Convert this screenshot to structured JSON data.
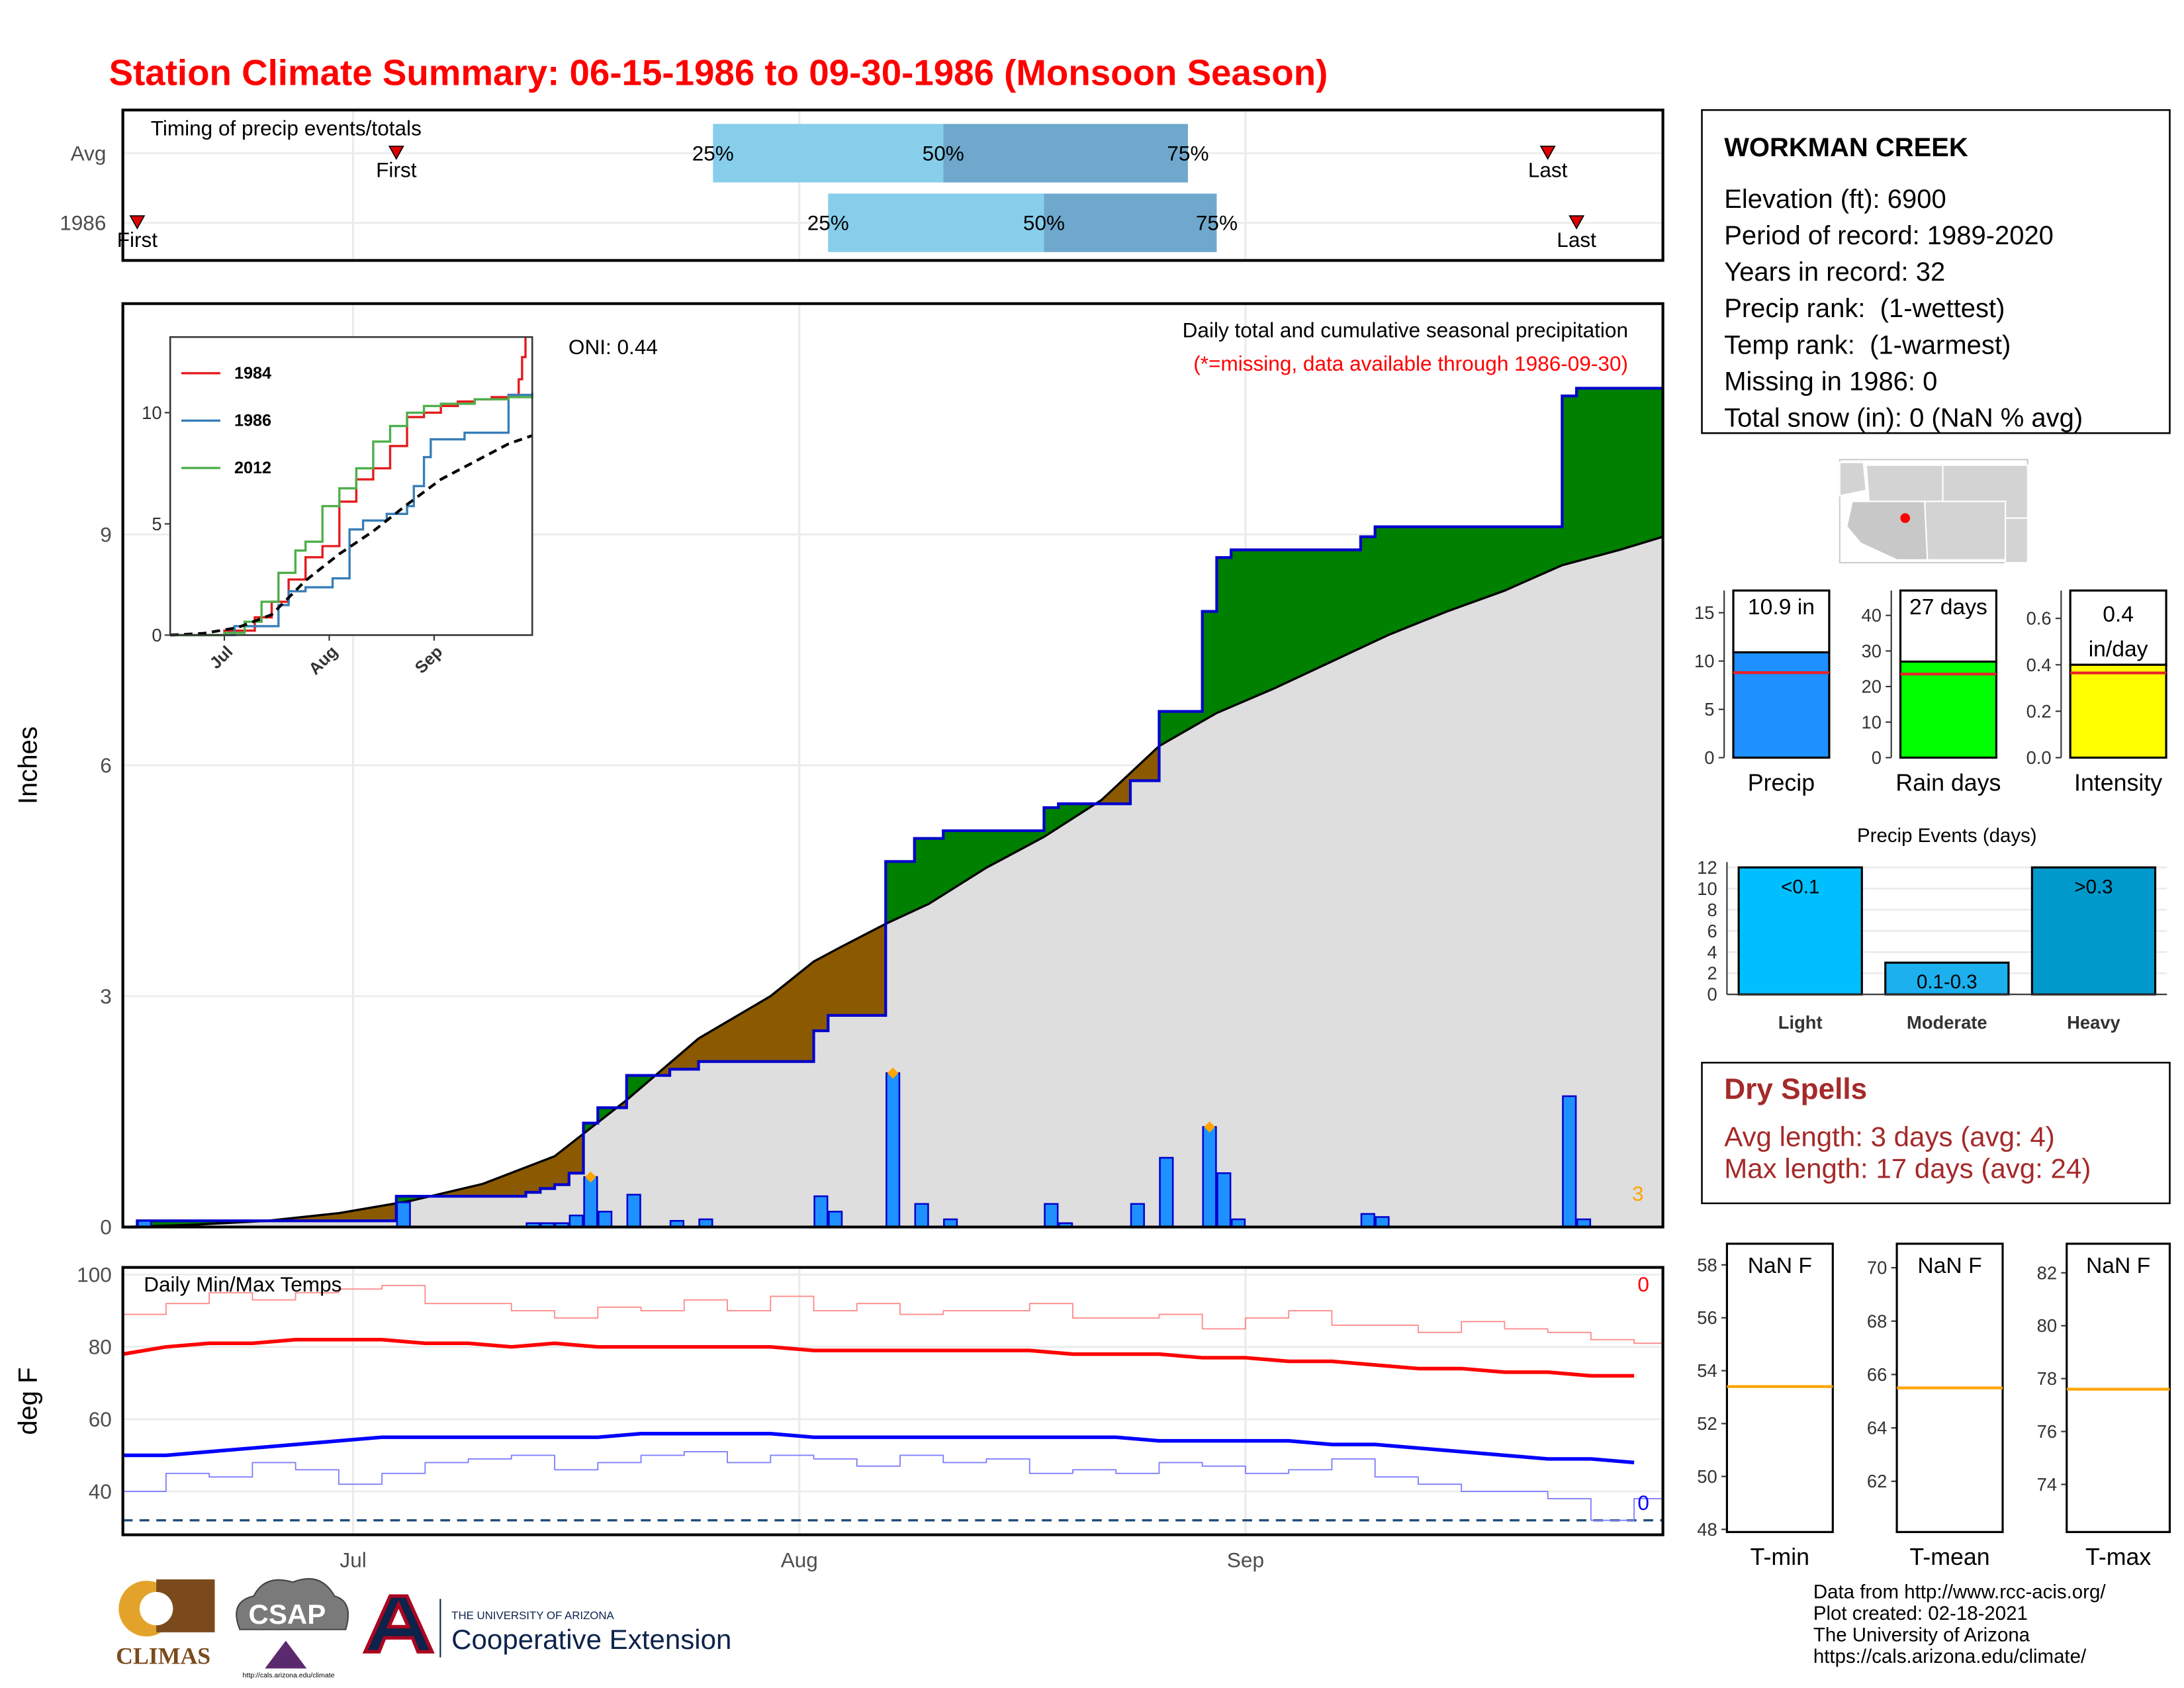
{
  "title": "Station Climate Summary: 06-15-1986 to 09-30-1986 (Monsoon Season)",
  "station": {
    "name": "WORKMAN CREEK",
    "lines": [
      "Elevation (ft): 6900",
      "Period of record: 1989-2020",
      "Years in record: 32",
      "Precip rank:  (1-wettest)",
      "Temp rank:  (1-warmest)",
      "Missing in 1986: 0",
      "Total snow (in): 0 (NaN % avg)"
    ]
  },
  "dry_spells": {
    "title": "Dry Spells",
    "lines": [
      "Avg length: 3 days (avg: 4)",
      "Max length: 17 days (avg: 24)"
    ]
  },
  "footer": [
    "Data from http://www.rcc-acis.org/",
    "Plot created: 02-18-2021",
    "The University of Arizona",
    "https://cals.arizona.edu/climate/"
  ],
  "logos": {
    "climas": "CLIMAS",
    "csap": "CSAP",
    "csap_url": "http://cals.arizona.edu/climate",
    "ua": "THE UNIVERSITY OF ARIZONA",
    "extension": "Cooperative Extension"
  },
  "chart_data": [
    {
      "type": "timing",
      "title": "Timing of precip events/totals",
      "categories": [
        "Avg",
        "1986"
      ],
      "first": [
        19,
        1
      ],
      "q25": [
        41,
        49
      ],
      "q50": [
        57,
        64
      ],
      "q75": [
        74,
        76
      ],
      "last": [
        99,
        101
      ],
      "labels": {
        "first": "First",
        "last": "Last",
        "q25": "25%",
        "q50": "50%",
        "q75": "75%"
      },
      "colors": [
        "#87ceeb",
        "#6fa8cc"
      ],
      "xlim": [
        0,
        107
      ],
      "xticks": [
        {
          "value": 16,
          "label": "Jul"
        },
        {
          "value": 47,
          "label": "Aug"
        },
        {
          "value": 78,
          "label": "Sep"
        }
      ],
      "grid": true
    },
    {
      "type": "precip",
      "title": "Daily total and cumulative seasonal precipitation",
      "subtitle": "(*=missing, data available through 1986-09-30)",
      "annotation": "ONI: 0.44",
      "count_label": "3",
      "ylabel": "Inches",
      "xlim": [
        0,
        107
      ],
      "xticks": [
        {
          "value": 16,
          "label": "Jul"
        },
        {
          "value": 47,
          "label": "Aug"
        },
        {
          "value": 78,
          "label": "Sep"
        }
      ],
      "ylim": [
        0,
        12
      ],
      "yticks": [
        0,
        3,
        6,
        9
      ],
      "grid": true,
      "bars": {
        "color": "#1e90ff",
        "stroke": "#0000cd",
        "x": [
          1,
          19,
          28,
          29,
          30,
          31,
          32,
          33,
          35,
          38,
          40,
          48,
          49,
          53,
          55,
          57,
          64,
          65,
          70,
          72,
          75,
          76,
          77,
          86,
          87,
          100,
          101
        ],
        "values": [
          0.08,
          0.32,
          0.05,
          0.05,
          0.05,
          0.15,
          0.65,
          0.2,
          0.42,
          0.08,
          0.1,
          0.4,
          0.2,
          2.0,
          0.3,
          0.1,
          0.3,
          0.05,
          0.3,
          0.9,
          1.3,
          0.7,
          0.1,
          0.17,
          0.13,
          1.7,
          0.1
        ]
      },
      "highlight_days": [
        32,
        53,
        75
      ],
      "highlight_color": "#ffa500",
      "cumulative": {
        "color": "#0000cd",
        "x": [
          0,
          1,
          19,
          28,
          29,
          30,
          31,
          32,
          33,
          35,
          38,
          40,
          48,
          49,
          53,
          55,
          57,
          64,
          65,
          70,
          72,
          75,
          76,
          77,
          86,
          87,
          100,
          101
        ],
        "values": [
          0,
          0.08,
          0.4,
          0.45,
          0.5,
          0.55,
          0.7,
          1.35,
          1.55,
          1.97,
          2.05,
          2.15,
          2.55,
          2.75,
          4.75,
          5.05,
          5.15,
          5.45,
          5.5,
          5.8,
          6.7,
          8.0,
          8.7,
          8.8,
          8.97,
          9.1,
          10.8,
          10.9
        ]
      },
      "average": {
        "color": "#000000",
        "x": [
          0,
          5,
          10,
          15,
          20,
          25,
          30,
          35,
          40,
          45,
          48,
          50,
          53,
          56,
          60,
          64,
          68,
          72,
          76,
          80,
          84,
          88,
          92,
          96,
          100,
          104,
          107
        ],
        "values": [
          0,
          0.03,
          0.08,
          0.18,
          0.34,
          0.56,
          0.92,
          1.65,
          2.45,
          3.0,
          3.45,
          3.65,
          3.94,
          4.2,
          4.67,
          5.07,
          5.55,
          6.25,
          6.68,
          7.0,
          7.35,
          7.7,
          8.0,
          8.27,
          8.6,
          8.8,
          8.97
        ]
      },
      "above_color": "#008000",
      "below_color": "#8b5a00",
      "average_fill": "#dedede"
    },
    {
      "type": "line",
      "legend": "top-left",
      "xlim": [
        0,
        107
      ],
      "xticks": [
        {
          "value": 16,
          "label": "Jul"
        },
        {
          "value": 47,
          "label": "Aug"
        },
        {
          "value": 78,
          "label": "Sep"
        }
      ],
      "ylim": [
        0,
        13.4
      ],
      "yticks": [
        0,
        5,
        10
      ],
      "series": [
        {
          "name": "1984",
          "color": "#e41a1c",
          "style": "step",
          "x": [
            0,
            16,
            25,
            30,
            35,
            40,
            45,
            50,
            55,
            60,
            65,
            70,
            75,
            80,
            85,
            90,
            95,
            100,
            103,
            104,
            105
          ],
          "values": [
            0,
            0.2,
            0.8,
            1.5,
            2.5,
            3.5,
            4.0,
            6.0,
            7,
            7.5,
            8.5,
            9.8,
            10,
            10.3,
            10.5,
            10.6,
            10.7,
            10.8,
            11.5,
            12.5,
            13.4
          ]
        },
        {
          "name": "1986",
          "color": "#377eb8",
          "style": "step",
          "x": [
            0,
            19,
            32,
            35,
            40,
            48,
            53,
            57,
            64,
            70,
            72,
            75,
            77,
            87,
            100,
            107
          ],
          "values": [
            0,
            0.4,
            1.35,
            1.97,
            2.15,
            2.55,
            4.75,
            5.15,
            5.45,
            5.8,
            6.7,
            8.0,
            8.8,
            9.1,
            10.8,
            10.9
          ]
        },
        {
          "name": "2012",
          "color": "#4daf4a",
          "style": "step",
          "x": [
            0,
            16,
            22,
            27,
            32,
            37,
            40,
            45,
            50,
            55,
            60,
            65,
            70,
            75,
            80,
            90,
            100,
            107
          ],
          "values": [
            0,
            0.1,
            0.6,
            1.5,
            2.8,
            3.8,
            4.2,
            5.8,
            6.6,
            7.5,
            8.7,
            9.4,
            10.0,
            10.3,
            10.4,
            10.6,
            10.7,
            10.8
          ]
        },
        {
          "color": "#000000",
          "style": "dashed",
          "x": [
            0,
            10,
            20,
            30,
            40,
            50,
            60,
            70,
            80,
            90,
            100,
            107
          ],
          "values": [
            0,
            0.08,
            0.34,
            0.92,
            2.45,
            3.65,
            4.67,
            5.87,
            7.0,
            7.8,
            8.6,
            8.97
          ]
        }
      ]
    },
    {
      "type": "temps",
      "title": "Daily Min/Max Temps",
      "ylabel": "deg F",
      "xlim": [
        0,
        107
      ],
      "xticks": [
        {
          "value": 16,
          "label": "Jul"
        },
        {
          "value": 47,
          "label": "Aug"
        },
        {
          "value": 78,
          "label": "Sep"
        }
      ],
      "ylim": [
        28,
        102
      ],
      "yticks": [
        40,
        60,
        80,
        100
      ],
      "grid": true,
      "x": [
        0,
        3,
        6,
        9,
        12,
        15,
        18,
        21,
        24,
        27,
        30,
        33,
        36,
        39,
        42,
        45,
        48,
        51,
        54,
        57,
        60,
        63,
        66,
        69,
        72,
        75,
        78,
        81,
        84,
        87,
        90,
        93,
        96,
        99,
        102,
        105
      ],
      "series": [
        {
          "color": "#ff8c8c",
          "style": "step",
          "values": [
            89,
            92,
            95,
            93,
            95,
            96,
            97,
            92,
            92,
            90,
            88,
            91,
            90,
            93,
            90,
            94,
            90,
            92,
            89,
            90,
            90,
            92,
            88,
            88,
            89,
            85,
            88,
            90,
            86,
            86,
            84,
            87,
            85,
            84,
            82,
            81
          ]
        },
        {
          "color": "#ff0000",
          "style": "line",
          "values": [
            78,
            80,
            81,
            81,
            82,
            82,
            82,
            81,
            81,
            80,
            81,
            80,
            80,
            80,
            80,
            80,
            79,
            79,
            79,
            79,
            79,
            79,
            78,
            78,
            78,
            77,
            77,
            76,
            76,
            75,
            74,
            74,
            73,
            73,
            72,
            72
          ]
        },
        {
          "color": "#0000ff",
          "style": "line",
          "values": [
            50,
            50,
            51,
            52,
            53,
            54,
            55,
            55,
            55,
            55,
            55,
            55,
            56,
            56,
            56,
            56,
            55,
            55,
            55,
            55,
            55,
            55,
            55,
            55,
            54,
            54,
            54,
            54,
            53,
            53,
            52,
            51,
            50,
            49,
            49,
            48
          ]
        },
        {
          "color": "#8080ff",
          "style": "step",
          "values": [
            40,
            45,
            44,
            48,
            46,
            42,
            45,
            48,
            49,
            50,
            46,
            48,
            50,
            51,
            48,
            50,
            49,
            47,
            50,
            48,
            49,
            45,
            46,
            45,
            48,
            47,
            45,
            46,
            49,
            44,
            42,
            40,
            40,
            38,
            32,
            38
          ]
        }
      ],
      "reference": 32,
      "reference_color": "#1f4e79",
      "annotations": [
        {
          "text": "0",
          "color": "#ff0000"
        },
        {
          "text": "0",
          "color": "#0000ff"
        }
      ]
    },
    {
      "type": "bar",
      "categories": [
        "Precip"
      ],
      "values": [
        10.9
      ],
      "value_labels": [
        "10.9 in"
      ],
      "color": "#1e90ff",
      "reference": 8.8,
      "reference_color": "#e8202a",
      "ylim": [
        0,
        17.3
      ],
      "yticks": [
        0,
        5,
        10,
        15
      ]
    },
    {
      "type": "bar",
      "categories": [
        "Rain days"
      ],
      "values": [
        27
      ],
      "value_labels": [
        "27 days"
      ],
      "color": "#00ff00",
      "reference": 23.5,
      "reference_color": "#e8202a",
      "ylim": [
        0,
        47
      ],
      "yticks": [
        0,
        10,
        20,
        30,
        40
      ]
    },
    {
      "type": "bar",
      "categories": [
        "Intensity"
      ],
      "values": [
        0.4
      ],
      "value_labels": [
        "0.4 in/day"
      ],
      "color": "#ffff00",
      "reference": 0.365,
      "reference_color": "#e8202a",
      "ylim": [
        0,
        0.72
      ],
      "yticks": [
        {
          "value": 0,
          "label": "0.0"
        },
        0.2,
        0.4,
        0.6
      ]
    },
    {
      "type": "bar",
      "title": "Precip Events (days)",
      "categories": [
        "Light",
        "Moderate",
        "Heavy"
      ],
      "values": [
        12,
        3,
        12
      ],
      "bin_labels": [
        "<0.1",
        "0.1-0.3",
        ">0.3"
      ],
      "colors": [
        "#00bfff",
        "#1cb0ee",
        "#0099cc"
      ],
      "ylim": [
        0,
        12.5
      ],
      "yticks": [
        0,
        2,
        4,
        6,
        8,
        10,
        12
      ],
      "grid": true
    },
    {
      "type": "bar",
      "categories": [
        "T-min"
      ],
      "values": [
        null
      ],
      "value_labels": [
        "NaN F"
      ],
      "reference": 53.4,
      "reference_color": "#ffa500",
      "ylim": [
        47.9,
        58.8
      ],
      "yticks": [
        48,
        50,
        52,
        54,
        56,
        58
      ]
    },
    {
      "type": "bar",
      "categories": [
        "T-mean"
      ],
      "values": [
        null
      ],
      "value_labels": [
        "NaN F"
      ],
      "reference": 65.5,
      "reference_color": "#ffa500",
      "ylim": [
        60.1,
        70.9
      ],
      "yticks": [
        62,
        64,
        66,
        68,
        70
      ]
    },
    {
      "type": "bar",
      "categories": [
        "T-max"
      ],
      "values": [
        null
      ],
      "value_labels": [
        "NaN F"
      ],
      "reference": 77.6,
      "reference_color": "#ffa500",
      "ylim": [
        72.2,
        83.1
      ],
      "yticks": [
        74,
        76,
        78,
        80,
        82
      ]
    }
  ]
}
